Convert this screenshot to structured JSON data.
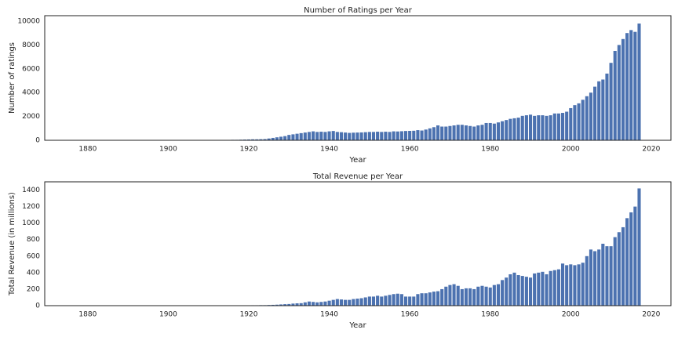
{
  "chart_data": [
    {
      "type": "bar",
      "title": "Number of Ratings per Year",
      "xlabel": "Year",
      "ylabel": "Number of ratings",
      "color": "#4c72b0",
      "x": [
        1910,
        1911,
        1912,
        1913,
        1914,
        1915,
        1916,
        1917,
        1918,
        1919,
        1920,
        1921,
        1922,
        1923,
        1924,
        1925,
        1926,
        1927,
        1928,
        1929,
        1930,
        1931,
        1932,
        1933,
        1934,
        1935,
        1936,
        1937,
        1938,
        1939,
        1940,
        1941,
        1942,
        1943,
        1944,
        1945,
        1946,
        1947,
        1948,
        1949,
        1950,
        1951,
        1952,
        1953,
        1954,
        1955,
        1956,
        1957,
        1958,
        1959,
        1960,
        1961,
        1962,
        1963,
        1964,
        1965,
        1966,
        1967,
        1968,
        1969,
        1970,
        1971,
        1972,
        1973,
        1974,
        1975,
        1976,
        1977,
        1978,
        1979,
        1980,
        1981,
        1982,
        1983,
        1984,
        1985,
        1986,
        1987,
        1988,
        1989,
        1990,
        1991,
        1992,
        1993,
        1994,
        1995,
        1996,
        1997,
        1998,
        1999,
        2000,
        2001,
        2002,
        2003,
        2004,
        2005,
        2006,
        2007,
        2008,
        2009,
        2010,
        2011,
        2012,
        2013,
        2014,
        2015,
        2016,
        2017
      ],
      "values": [
        5,
        5,
        10,
        10,
        20,
        30,
        40,
        40,
        50,
        60,
        70,
        80,
        80,
        90,
        100,
        150,
        200,
        250,
        300,
        350,
        450,
        500,
        550,
        600,
        650,
        700,
        750,
        700,
        720,
        700,
        750,
        780,
        700,
        680,
        650,
        620,
        640,
        650,
        660,
        680,
        700,
        700,
        720,
        700,
        720,
        700,
        750,
        740,
        760,
        780,
        790,
        800,
        850,
        820,
        900,
        1000,
        1100,
        1250,
        1150,
        1150,
        1200,
        1250,
        1300,
        1300,
        1250,
        1200,
        1150,
        1250,
        1300,
        1450,
        1450,
        1400,
        1500,
        1600,
        1700,
        1800,
        1850,
        1900,
        2050,
        2100,
        2150,
        2050,
        2100,
        2100,
        2050,
        2100,
        2250,
        2250,
        2300,
        2400,
        2700,
        2950,
        3100,
        3400,
        3700,
        4000,
        4500,
        4950,
        5100,
        5600,
        6500,
        7500,
        8000,
        8500,
        9000,
        9250,
        9100,
        9800
      ],
      "xlim": [
        1869.3,
        2024.9
      ],
      "xticks": [
        1880,
        1900,
        1920,
        1940,
        1960,
        1980,
        2000,
        2020
      ],
      "ylim": [
        0,
        10460
      ],
      "yticks": [
        0,
        2000,
        4000,
        6000,
        8000,
        10000
      ]
    },
    {
      "type": "bar",
      "title": "Total Revenue per Year",
      "xlabel": "Year",
      "ylabel": "Total Revenue (in millions)",
      "color": "#4c72b0",
      "x": [
        1910,
        1911,
        1912,
        1913,
        1914,
        1915,
        1916,
        1917,
        1918,
        1919,
        1920,
        1921,
        1922,
        1923,
        1924,
        1925,
        1926,
        1927,
        1928,
        1929,
        1930,
        1931,
        1932,
        1933,
        1934,
        1935,
        1936,
        1937,
        1938,
        1939,
        1940,
        1941,
        1942,
        1943,
        1944,
        1945,
        1946,
        1947,
        1948,
        1949,
        1950,
        1951,
        1952,
        1953,
        1954,
        1955,
        1956,
        1957,
        1958,
        1959,
        1960,
        1961,
        1962,
        1963,
        1964,
        1965,
        1966,
        1967,
        1968,
        1969,
        1970,
        1971,
        1972,
        1973,
        1974,
        1975,
        1976,
        1977,
        1978,
        1979,
        1980,
        1981,
        1982,
        1983,
        1984,
        1985,
        1986,
        1987,
        1988,
        1989,
        1990,
        1991,
        1992,
        1993,
        1994,
        1995,
        1996,
        1997,
        1998,
        1999,
        2000,
        2001,
        2002,
        2003,
        2004,
        2005,
        2006,
        2007,
        2008,
        2009,
        2010,
        2011,
        2012,
        2013,
        2014,
        2015,
        2016,
        2017
      ],
      "values": [
        0,
        0,
        0,
        1,
        1,
        2,
        2,
        3,
        3,
        4,
        4,
        5,
        5,
        6,
        6,
        8,
        10,
        12,
        15,
        18,
        20,
        25,
        28,
        30,
        40,
        50,
        45,
        40,
        45,
        50,
        60,
        70,
        80,
        75,
        70,
        70,
        80,
        85,
        90,
        100,
        110,
        110,
        120,
        110,
        120,
        130,
        140,
        145,
        140,
        110,
        110,
        110,
        140,
        150,
        150,
        160,
        170,
        175,
        200,
        230,
        250,
        260,
        240,
        200,
        210,
        210,
        200,
        230,
        240,
        230,
        220,
        250,
        260,
        310,
        340,
        380,
        400,
        370,
        360,
        350,
        340,
        390,
        400,
        410,
        380,
        420,
        430,
        440,
        510,
        490,
        500,
        490,
        500,
        520,
        600,
        680,
        660,
        680,
        750,
        720,
        720,
        830,
        890,
        950,
        1060,
        1130,
        1200,
        1420
      ],
      "xlim": [
        1869.3,
        2024.9
      ],
      "xticks": [
        1880,
        1900,
        1920,
        1940,
        1960,
        1980,
        2000,
        2020
      ],
      "ylim": [
        0,
        1500
      ],
      "yticks": [
        0,
        200,
        400,
        600,
        800,
        1000,
        1200,
        1400
      ]
    }
  ]
}
